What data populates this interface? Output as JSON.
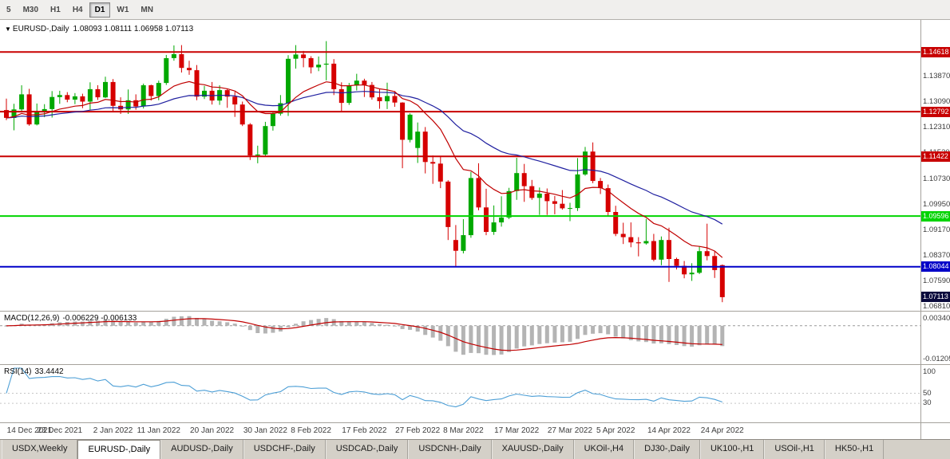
{
  "toolbar": {
    "buttons": [
      "5",
      "M30",
      "H1",
      "H4",
      "D1",
      "W1",
      "MN"
    ],
    "active": "D1"
  },
  "chart_header": {
    "dropdown_icon": "▼",
    "symbol": "EURUSD-,Daily",
    "ohlc": "1.08093 1.08111 1.06958 1.07113"
  },
  "macd_panel": {
    "title": "MACD(12,26,9)",
    "values": "-0.006229 -0.006133",
    "axis_ticks": [
      {
        "label": "0.00340",
        "value": 0.0034
      },
      {
        "label": "-0.01205",
        "value": -0.01205
      }
    ]
  },
  "rsi_panel": {
    "title": "RSI(14)",
    "value": "33.4442",
    "axis_ticks": [
      {
        "label": "100",
        "value": 100
      },
      {
        "label": "50",
        "value": 50
      },
      {
        "label": "30",
        "value": 30
      }
    ]
  },
  "date_axis": [
    {
      "label": "14 Dec 2021",
      "index": 0
    },
    {
      "label": "23 Dec 2021",
      "index": 7
    },
    {
      "label": "2 Jan 2022",
      "index": 14
    },
    {
      "label": "11 Jan 2022",
      "index": 20
    },
    {
      "label": "20 Jan 2022",
      "index": 27
    },
    {
      "label": "30 Jan 2022",
      "index": 34
    },
    {
      "label": "8 Feb 2022",
      "index": 40
    },
    {
      "label": "17 Feb 2022",
      "index": 47
    },
    {
      "label": "27 Feb 2022",
      "index": 54
    },
    {
      "label": "8 Mar 2022",
      "index": 60
    },
    {
      "label": "17 Mar 2022",
      "index": 67
    },
    {
      "label": "27 Mar 2022",
      "index": 74
    },
    {
      "label": "5 Apr 2022",
      "index": 80
    },
    {
      "label": "14 Apr 2022",
      "index": 87
    },
    {
      "label": "24 Apr 2022",
      "index": 94
    }
  ],
  "tabs": [
    {
      "label": "USDX,Weekly",
      "active": false
    },
    {
      "label": "EURUSD-,Daily",
      "active": true
    },
    {
      "label": "AUDUSD-,Daily",
      "active": false
    },
    {
      "label": "USDCHF-,Daily",
      "active": false
    },
    {
      "label": "USDCAD-,Daily",
      "active": false
    },
    {
      "label": "USDCNH-,Daily",
      "active": false
    },
    {
      "label": "XAUUSD-,Daily",
      "active": false
    },
    {
      "label": "UKOil-,H4",
      "active": false
    },
    {
      "label": "DJ30-,Daily",
      "active": false
    },
    {
      "label": "UK100-,H1",
      "active": false
    },
    {
      "label": "USOil-,H1",
      "active": false
    },
    {
      "label": "HK50-,H1",
      "active": false
    }
  ],
  "chart_data": {
    "type": "candlestick",
    "title": "EURUSD-,Daily",
    "symbol": "EURUSD",
    "timeframe": "Daily",
    "ylim": [
      1.0667,
      1.156
    ],
    "price_ticks": [
      {
        "label": "1.13870",
        "value": 1.1387
      },
      {
        "label": "1.13090",
        "value": 1.1309
      },
      {
        "label": "1.12310",
        "value": 1.1231
      },
      {
        "label": "1.11530",
        "value": 1.1153
      },
      {
        "label": "1.10730",
        "value": 1.1073
      },
      {
        "label": "1.09950",
        "value": 1.0995
      },
      {
        "label": "1.09170",
        "value": 1.0917
      },
      {
        "label": "1.08370",
        "value": 1.0837
      },
      {
        "label": "1.07590",
        "value": 1.0759
      },
      {
        "label": "1.06810",
        "value": 1.0681
      }
    ],
    "hlines": [
      {
        "label": "1.14618",
        "value": 1.14618,
        "color": "#c80000"
      },
      {
        "label": "1.12792",
        "value": 1.12792,
        "color": "#c80000"
      },
      {
        "label": "1.11422",
        "value": 1.11422,
        "color": "#c80000"
      },
      {
        "label": "1.09596",
        "value": 1.09596,
        "color": "#00d400"
      },
      {
        "label": "1.08044",
        "value": 1.08044,
        "color": "#0000c8"
      }
    ],
    "current_price": {
      "label": "1.07113",
      "value": 1.07113,
      "badge_color": "#0a0a3c"
    },
    "colors": {
      "bull": "#00a800",
      "bear": "#d60000",
      "ma_fast": "#c00000",
      "ma_slow": "#2020a0",
      "macd_hist": "#b4b4b4",
      "macd_signal": "#c00000",
      "rsi_line": "#4d9fd6"
    },
    "indicators": {
      "ma_fast_period": 13,
      "ma_slow_period": 34,
      "macd": [
        12,
        26,
        9
      ],
      "rsi_period": 14
    },
    "macd_ylim": [
      -0.0135,
      0.0045
    ],
    "rsi_ylim": [
      0,
      100
    ],
    "candles": [
      [
        1.1284,
        1.1319,
        1.1253,
        1.126
      ],
      [
        1.126,
        1.1303,
        1.1222,
        1.1286
      ],
      [
        1.1286,
        1.136,
        1.128,
        1.1332
      ],
      [
        1.1332,
        1.1349,
        1.1236,
        1.124
      ],
      [
        1.124,
        1.1304,
        1.1237,
        1.1277
      ],
      [
        1.1277,
        1.1302,
        1.1262,
        1.1287
      ],
      [
        1.1287,
        1.1342,
        1.1261,
        1.1324
      ],
      [
        1.1324,
        1.1343,
        1.1303,
        1.133
      ],
      [
        1.133,
        1.1339,
        1.1308,
        1.1316
      ],
      [
        1.1316,
        1.1336,
        1.1302,
        1.1326
      ],
      [
        1.1326,
        1.1334,
        1.129,
        1.131
      ],
      [
        1.131,
        1.1369,
        1.1285,
        1.1348
      ],
      [
        1.1348,
        1.136,
        1.1315,
        1.1323
      ],
      [
        1.1323,
        1.1386,
        1.1321,
        1.137
      ],
      [
        1.137,
        1.1379,
        1.1279,
        1.1297
      ],
      [
        1.1297,
        1.1323,
        1.1272,
        1.1286
      ],
      [
        1.1286,
        1.1347,
        1.1272,
        1.1314
      ],
      [
        1.1314,
        1.1332,
        1.1285,
        1.1295
      ],
      [
        1.1295,
        1.1365,
        1.1289,
        1.136
      ],
      [
        1.136,
        1.1362,
        1.1313,
        1.1327
      ],
      [
        1.1327,
        1.1374,
        1.1314,
        1.1367
      ],
      [
        1.1367,
        1.1453,
        1.1361,
        1.1443
      ],
      [
        1.1443,
        1.1482,
        1.1435,
        1.1455
      ],
      [
        1.1455,
        1.1483,
        1.1399,
        1.1413
      ],
      [
        1.1413,
        1.1435,
        1.1392,
        1.1406
      ],
      [
        1.1406,
        1.1422,
        1.1314,
        1.1325
      ],
      [
        1.1325,
        1.1358,
        1.1318,
        1.1343
      ],
      [
        1.1343,
        1.137,
        1.1301,
        1.1313
      ],
      [
        1.1313,
        1.136,
        1.13,
        1.1345
      ],
      [
        1.1345,
        1.1349,
        1.1291,
        1.1325
      ],
      [
        1.1325,
        1.134,
        1.1263,
        1.1301
      ],
      [
        1.1301,
        1.131,
        1.1235,
        1.124
      ],
      [
        1.124,
        1.1244,
        1.1131,
        1.1145
      ],
      [
        1.1145,
        1.1175,
        1.1121,
        1.1148
      ],
      [
        1.1148,
        1.1248,
        1.1141,
        1.1235
      ],
      [
        1.1235,
        1.1279,
        1.1221,
        1.1273
      ],
      [
        1.1273,
        1.133,
        1.1267,
        1.1305
      ],
      [
        1.1305,
        1.1452,
        1.1266,
        1.1441
      ],
      [
        1.1441,
        1.1483,
        1.1411,
        1.1454
      ],
      [
        1.1454,
        1.1465,
        1.1415,
        1.1443
      ],
      [
        1.1443,
        1.1449,
        1.1396,
        1.1415
      ],
      [
        1.1415,
        1.1448,
        1.1403,
        1.1423
      ],
      [
        1.1423,
        1.1495,
        1.1375,
        1.1426
      ],
      [
        1.1426,
        1.144,
        1.133,
        1.1348
      ],
      [
        1.1348,
        1.1369,
        1.1278,
        1.1306
      ],
      [
        1.1306,
        1.1367,
        1.13,
        1.1359
      ],
      [
        1.1359,
        1.1395,
        1.1344,
        1.1374
      ],
      [
        1.1374,
        1.138,
        1.1324,
        1.1361
      ],
      [
        1.1361,
        1.137,
        1.1316,
        1.1323
      ],
      [
        1.1323,
        1.135,
        1.1288,
        1.1311
      ],
      [
        1.1311,
        1.1368,
        1.1287,
        1.1327
      ],
      [
        1.1327,
        1.1342,
        1.1294,
        1.1307
      ],
      [
        1.1307,
        1.1308,
        1.1106,
        1.1193
      ],
      [
        1.1193,
        1.1274,
        1.1185,
        1.127
      ],
      [
        1.1168,
        1.1246,
        1.1122,
        1.1218
      ],
      [
        1.1218,
        1.1232,
        1.109,
        1.1125
      ],
      [
        1.1125,
        1.1145,
        1.1058,
        1.112
      ],
      [
        1.112,
        1.1142,
        1.1045,
        1.1065
      ],
      [
        1.1065,
        1.1069,
        1.0886,
        1.0926
      ],
      [
        1.0886,
        1.0932,
        1.0806,
        1.0853
      ],
      [
        1.0853,
        1.095,
        1.0845,
        1.0901
      ],
      [
        1.0901,
        1.1095,
        1.0893,
        1.1076
      ],
      [
        1.1076,
        1.1121,
        1.0977,
        1.0986
      ],
      [
        1.0986,
        1.1043,
        1.0901,
        1.0911
      ],
      [
        1.0911,
        1.0992,
        1.0902,
        1.094
      ],
      [
        1.094,
        1.102,
        1.0927,
        1.0955
      ],
      [
        1.0955,
        1.1046,
        1.095,
        1.1036
      ],
      [
        1.1036,
        1.1138,
        1.1009,
        1.1091
      ],
      [
        1.1091,
        1.1119,
        1.1003,
        1.1051
      ],
      [
        1.1051,
        1.107,
        1.1009,
        1.1015
      ],
      [
        1.1015,
        1.1047,
        1.0963,
        1.1028
      ],
      [
        1.1028,
        1.1044,
        1.0963,
        1.1005
      ],
      [
        1.1005,
        1.1021,
        1.0965,
        1.0997
      ],
      [
        1.0997,
        1.1039,
        1.0979,
        1.0983
      ],
      [
        1.0983,
        1.1,
        1.0944,
        1.0984
      ],
      [
        1.0984,
        1.1137,
        1.0975,
        1.1087
      ],
      [
        1.1087,
        1.1171,
        1.1083,
        1.1157
      ],
      [
        1.1157,
        1.1185,
        1.106,
        1.1067
      ],
      [
        1.1067,
        1.1076,
        1.1027,
        1.1045
      ],
      [
        1.1045,
        1.1056,
        1.096,
        1.0972
      ],
      [
        1.0972,
        1.0991,
        1.0898,
        1.0905
      ],
      [
        1.0905,
        1.0939,
        1.0874,
        1.0895
      ],
      [
        1.0895,
        1.094,
        1.0864,
        1.0879
      ],
      [
        1.0879,
        1.0895,
        1.0836,
        1.0876
      ],
      [
        1.0876,
        1.0951,
        1.0872,
        1.0883
      ],
      [
        1.0883,
        1.0905,
        1.0821,
        1.0826
      ],
      [
        1.0826,
        1.0897,
        1.0809,
        1.0886
      ],
      [
        1.0886,
        1.0924,
        1.0758,
        1.0828
      ],
      [
        1.0828,
        1.0832,
        1.0796,
        1.0807
      ],
      [
        1.0807,
        1.0822,
        1.0769,
        1.0781
      ],
      [
        1.0781,
        1.0815,
        1.0761,
        1.0786
      ],
      [
        1.0786,
        1.0867,
        1.0782,
        1.0852
      ],
      [
        1.0852,
        1.0936,
        1.0824,
        1.0837
      ],
      [
        1.0837,
        1.0852,
        1.077,
        1.0794
      ],
      [
        1.08093,
        1.08111,
        1.06958,
        1.07113
      ]
    ]
  }
}
